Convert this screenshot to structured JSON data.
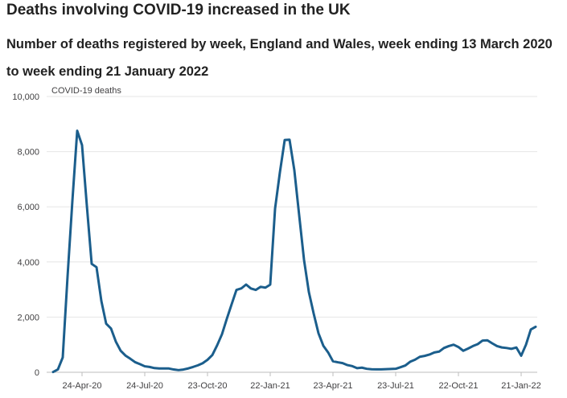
{
  "title": "Deaths involving COVID-19 increased in the UK",
  "subtitle": "Number of deaths registered by week, England and Wales, week ending 13 March 2020 to week ending 21 January 2022",
  "chart_data": {
    "type": "line",
    "ylabel": "COVID-19 deaths",
    "ylim": [
      0,
      10000
    ],
    "yticks": [
      0,
      2000,
      4000,
      6000,
      8000,
      10000
    ],
    "ytick_labels": [
      "0",
      "2,000",
      "4,000",
      "6,000",
      "8,000",
      "10,000"
    ],
    "xticks": [
      "24-Apr-20",
      "24-Jul-20",
      "23-Oct-20",
      "22-Jan-21",
      "23-Apr-21",
      "23-Jul-21",
      "22-Oct-21",
      "21-Jan-22"
    ],
    "grid": true,
    "color": "#1b5e8c",
    "series": [
      {
        "values": [
          10,
          103,
          539,
          3475,
          6213,
          8758,
          8237,
          6035,
          3930,
          3810,
          2589,
          1762,
          1588,
          1114,
          783,
          606,
          491,
          366,
          295,
          217,
          193,
          152,
          139,
          138,
          137,
          101,
          78,
          99,
          139,
          193,
          252,
          329,
          452,
          625,
          978,
          1379,
          1937,
          2466,
          2986,
          3040,
          3181,
          3038,
          2986,
          3099,
          3068,
          3179,
          5930,
          7245,
          8422,
          8433,
          7320,
          5691,
          4079,
          2914,
          2131,
          1414,
          963,
          719,
          399,
          362,
          332,
          260,
          224,
          150,
          168,
          126,
          108,
          107,
          104,
          113,
          121,
          127,
          184,
          246,
          381,
          456,
          562,
          594,
          642,
          719,
          750,
          880,
          950,
          1000,
          915,
          780,
          860,
          950,
          1020,
          1150,
          1160,
          1050,
          950,
          900,
          880,
          850,
          900,
          600,
          1000,
          1550,
          1650
        ]
      }
    ]
  }
}
